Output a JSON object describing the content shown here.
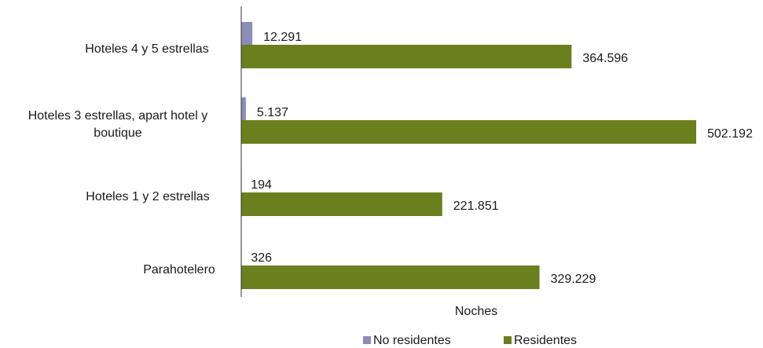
{
  "chart_data": {
    "type": "bar",
    "orientation": "horizontal",
    "categories": [
      [
        "Hoteles 4 y 5 estrellas"
      ],
      [
        "Hoteles 3 estrellas, apart hotel y",
        "boutique"
      ],
      [
        "Hoteles 1 y 2 estrellas"
      ],
      [
        "Parahotelero"
      ]
    ],
    "series": [
      {
        "name": "No residentes",
        "color": "#8c8cb9",
        "values": [
          12291,
          5137,
          194,
          326
        ],
        "labels": [
          "12.291",
          "5.137",
          "194",
          "326"
        ]
      },
      {
        "name": "Residentes",
        "color": "#6b7f1e",
        "values": [
          364596,
          502192,
          221851,
          329229
        ],
        "labels": [
          "364.596",
          "502.192",
          "221.851",
          "329.229"
        ]
      }
    ],
    "xlabel": "Noches",
    "xlim": [
      0,
      502192
    ],
    "grid": false,
    "legend_position": "bottom"
  }
}
